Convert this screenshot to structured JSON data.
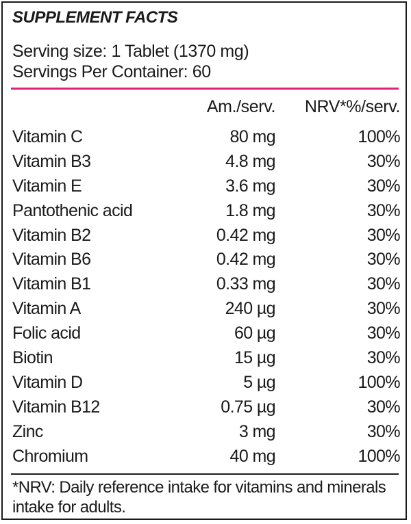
{
  "header": {
    "title": "SUPPLEMENT FACTS",
    "serving_size": "Serving size: 1 Tablet (1370 mg)",
    "servings_per_container": "Servings Per Container: 60"
  },
  "columns": {
    "amount": "Am./serv.",
    "nrv": "NRV*%/serv."
  },
  "nutrients": [
    {
      "name": "Vitamin C",
      "amount": "80 mg",
      "nrv": "100%"
    },
    {
      "name": "Vitamin B3",
      "amount": "4.8 mg",
      "nrv": "30%"
    },
    {
      "name": "Vitamin E",
      "amount": "3.6 mg",
      "nrv": "30%"
    },
    {
      "name": "Pantothenic acid",
      "amount": "1.8 mg",
      "nrv": "30%"
    },
    {
      "name": "Vitamin B2",
      "amount": "0.42 mg",
      "nrv": "30%"
    },
    {
      "name": "Vitamin B6",
      "amount": "0.42 mg",
      "nrv": "30%"
    },
    {
      "name": "Vitamin B1",
      "amount": "0.33 mg",
      "nrv": "30%"
    },
    {
      "name": "Vitamin A",
      "amount": "240 µg",
      "nrv": "30%"
    },
    {
      "name": "Folic acid",
      "amount": "60 µg",
      "nrv": "30%"
    },
    {
      "name": "Biotin",
      "amount": "15 µg",
      "nrv": "30%"
    },
    {
      "name": "Vitamin D",
      "amount": "5 µg",
      "nrv": "100%"
    },
    {
      "name": "Vitamin B12",
      "amount": "0.75 µg",
      "nrv": "30%"
    },
    {
      "name": "Zinc",
      "amount": "3 mg",
      "nrv": "30%"
    },
    {
      "name": "Chromium",
      "amount": "40 mg",
      "nrv": "100%"
    }
  ],
  "footnote": "*NRV: Daily reference intake for vitamins and minerals intake for adults.",
  "colors": {
    "accent_rule": "#e0217a",
    "text": "#1a1a1a"
  }
}
